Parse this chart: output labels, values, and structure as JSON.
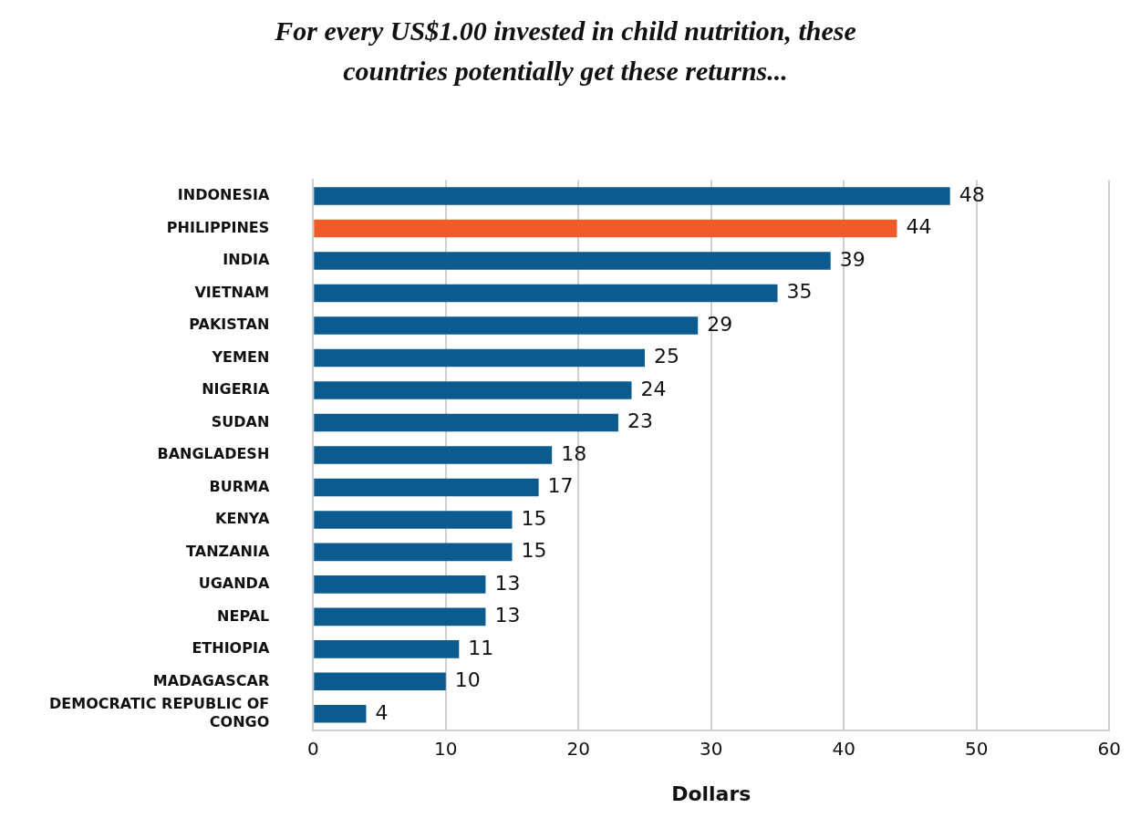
{
  "chart_data": {
    "type": "bar",
    "orientation": "horizontal",
    "title": "For every US$1.00 invested in child nutrition, these countries potentially get these returns...",
    "xlabel": "Dollars",
    "categories": [
      "INDONESIA",
      "PHILIPPINES",
      "INDIA",
      "VIETNAM",
      "PAKISTAN",
      "YEMEN",
      "NIGERIA",
      "SUDAN",
      "BANGLADESH",
      "BURMA",
      "KENYA",
      "TANZANIA",
      "UGANDA",
      "NEPAL",
      "ETHIOPIA",
      "MADAGASCAR",
      "DEMOCRATIC REPUBLIC OF CONGO"
    ],
    "values": [
      48,
      44,
      39,
      35,
      29,
      25,
      24,
      23,
      18,
      17,
      15,
      15,
      13,
      13,
      11,
      10,
      4
    ],
    "colors": [
      "#0b5b8f",
      "#f15a29",
      "#0b5b8f",
      "#0b5b8f",
      "#0b5b8f",
      "#0b5b8f",
      "#0b5b8f",
      "#0b5b8f",
      "#0b5b8f",
      "#0b5b8f",
      "#0b5b8f",
      "#0b5b8f",
      "#0b5b8f",
      "#0b5b8f",
      "#0b5b8f",
      "#0b5b8f",
      "#0b5b8f"
    ],
    "xlim": [
      0,
      60
    ],
    "xticks": [
      0,
      10,
      20,
      30,
      40,
      50,
      60
    ],
    "grid": "x",
    "data_labels": true
  }
}
